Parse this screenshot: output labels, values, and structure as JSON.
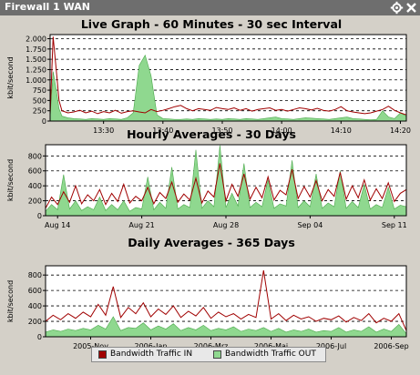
{
  "window": {
    "title": "Firewall 1 WAN",
    "icons": [
      "gear-icon",
      "close-icon"
    ],
    "titlebar_color": "#6e6e6e"
  },
  "colors": {
    "in": "#a00000",
    "out": "#8fd88f",
    "out_stroke": "#4aa84a",
    "plot_bg": "#ffffff"
  },
  "legend": {
    "in_label": "Bandwidth Traffic IN",
    "out_label": "Bandwidth Traffic OUT"
  },
  "chart_data": [
    {
      "type": "area",
      "title": "Live Graph - 60 Minutes - 30 sec Interval",
      "ylabel": "kbit/second",
      "yticks": [
        0,
        250,
        500,
        750,
        1000,
        1250,
        1500,
        1750,
        2000
      ],
      "ytick_labels": [
        "0",
        "250",
        "500",
        "750",
        "1.000",
        "1.250",
        "1.500",
        "1.750",
        "2.000"
      ],
      "ylim": [
        0,
        2100
      ],
      "xlim": [
        0,
        60
      ],
      "xticks": [
        9,
        19,
        29,
        39,
        49,
        59
      ],
      "xtick_labels": [
        "13:30",
        "13:40",
        "13:50",
        "14:00",
        "14:10",
        "14:20"
      ],
      "grid": "horizontal dashed",
      "series": [
        {
          "name": "Bandwidth Traffic IN",
          "x": [
            0,
            0.5,
            1,
            1.5,
            2,
            3,
            4,
            5,
            6,
            7,
            8,
            9,
            10,
            11,
            12,
            13,
            14,
            15,
            16,
            17,
            18,
            19,
            20,
            21,
            22,
            23,
            24,
            25,
            26,
            27,
            28,
            29,
            30,
            31,
            32,
            33,
            34,
            35,
            36,
            37,
            38,
            39,
            40,
            41,
            42,
            43,
            44,
            45,
            46,
            47,
            48,
            49,
            50,
            51,
            52,
            53,
            54,
            55,
            56,
            57,
            58,
            59,
            60
          ],
          "values": [
            150,
            2050,
            1300,
            500,
            250,
            200,
            220,
            260,
            200,
            240,
            180,
            230,
            200,
            260,
            190,
            230,
            250,
            220,
            200,
            280,
            230,
            260,
            300,
            350,
            380,
            300,
            250,
            300,
            280,
            260,
            330,
            300,
            280,
            320,
            260,
            300,
            240,
            280,
            300,
            320,
            260,
            280,
            240,
            280,
            320,
            300,
            270,
            310,
            260,
            240,
            280,
            350,
            250,
            220,
            200,
            180,
            200,
            240,
            280,
            360,
            260,
            200,
            150
          ]
        },
        {
          "name": "Bandwidth Traffic OUT",
          "x": [
            0,
            0.5,
            1,
            1.5,
            2,
            3,
            4,
            5,
            6,
            7,
            8,
            9,
            10,
            11,
            12,
            13,
            14,
            15,
            16,
            17,
            18,
            19,
            20,
            21,
            22,
            23,
            24,
            25,
            26,
            27,
            28,
            29,
            30,
            31,
            32,
            33,
            34,
            35,
            36,
            37,
            38,
            39,
            40,
            41,
            42,
            43,
            44,
            45,
            46,
            47,
            48,
            49,
            50,
            51,
            52,
            53,
            54,
            55,
            56,
            57,
            58,
            59,
            60
          ],
          "values": [
            100,
            1200,
            800,
            300,
            120,
            80,
            60,
            50,
            40,
            60,
            50,
            40,
            60,
            50,
            40,
            80,
            200,
            1350,
            1600,
            1100,
            150,
            60,
            50,
            40,
            40,
            50,
            40,
            60,
            50,
            40,
            50,
            40,
            60,
            50,
            40,
            60,
            50,
            40,
            60,
            80,
            100,
            60,
            50,
            40,
            60,
            80,
            70,
            60,
            50,
            40,
            60,
            80,
            100,
            60,
            50,
            40,
            30,
            40,
            250,
            100,
            60,
            200,
            120
          ]
        }
      ]
    },
    {
      "type": "area",
      "title": "Hourly Averages - 30 Days",
      "ylabel": "kbit/second",
      "yticks": [
        0,
        200,
        400,
        600,
        800
      ],
      "ytick_labels": [
        "0",
        "200",
        "400",
        "600",
        "800"
      ],
      "ylim": [
        0,
        950
      ],
      "xlim": [
        0,
        30
      ],
      "xticks": [
        1,
        8,
        15,
        22,
        29
      ],
      "xtick_labels": [
        "Aug 14",
        "Aug 21",
        "Aug 28",
        "Sep 04",
        "Sep 11"
      ],
      "grid": "horizontal dashed",
      "series": [
        {
          "name": "Bandwidth Traffic IN",
          "x": [
            0,
            0.5,
            1,
            1.5,
            2,
            2.5,
            3,
            3.5,
            4,
            4.5,
            5,
            5.5,
            6,
            6.5,
            7,
            7.5,
            8,
            8.5,
            9,
            9.5,
            10,
            10.5,
            11,
            11.5,
            12,
            12.5,
            13,
            13.5,
            14,
            14.5,
            15,
            15.5,
            16,
            16.5,
            17,
            17.5,
            18,
            18.5,
            19,
            19.5,
            20,
            20.5,
            21,
            21.5,
            22,
            22.5,
            23,
            23.5,
            24,
            24.5,
            25,
            25.5,
            26,
            26.5,
            27,
            27.5,
            28,
            28.5,
            29,
            29.5,
            30
          ],
          "values": [
            100,
            250,
            150,
            320,
            180,
            400,
            160,
            280,
            200,
            350,
            150,
            300,
            190,
            420,
            170,
            260,
            200,
            380,
            160,
            310,
            230,
            450,
            180,
            290,
            210,
            500,
            170,
            330,
            250,
            700,
            200,
            420,
            260,
            560,
            220,
            380,
            240,
            520,
            210,
            340,
            280,
            620,
            230,
            390,
            250,
            470,
            200,
            350,
            260,
            580,
            220,
            400,
            240,
            480,
            210,
            360,
            230,
            440,
            190,
            300,
            350
          ]
        },
        {
          "name": "Bandwidth Traffic OUT",
          "x": [
            0,
            0.5,
            1,
            1.5,
            2,
            2.5,
            3,
            3.5,
            4,
            4.5,
            5,
            5.5,
            6,
            6.5,
            7,
            7.5,
            8,
            8.5,
            9,
            9.5,
            10,
            10.5,
            11,
            11.5,
            12,
            12.5,
            13,
            13.5,
            14,
            14.5,
            15,
            15.5,
            16,
            16.5,
            17,
            17.5,
            18,
            18.5,
            19,
            19.5,
            20,
            20.5,
            21,
            21.5,
            22,
            22.5,
            23,
            23.5,
            24,
            24.5,
            25,
            25.5,
            26,
            26.5,
            27,
            27.5,
            28,
            28.5,
            29,
            29.5,
            30
          ],
          "values": [
            60,
            150,
            80,
            550,
            90,
            200,
            70,
            120,
            80,
            250,
            70,
            150,
            80,
            200,
            60,
            110,
            90,
            520,
            80,
            180,
            100,
            650,
            90,
            150,
            110,
            880,
            100,
            200,
            120,
            940,
            110,
            300,
            130,
            700,
            110,
            180,
            120,
            480,
            100,
            160,
            130,
            740,
            110,
            200,
            120,
            560,
            100,
            170,
            120,
            600,
            100,
            190,
            110,
            420,
            90,
            150,
            110,
            380,
            90,
            140,
            120
          ]
        }
      ]
    },
    {
      "type": "area",
      "title": "Daily Averages - 365 Days",
      "ylabel": "kbit/second",
      "yticks": [
        0,
        200,
        400,
        600,
        800
      ],
      "ytick_labels": [
        "0",
        "200",
        "400",
        "600",
        "800"
      ],
      "ylim": [
        0,
        920
      ],
      "xlim": [
        0,
        12
      ],
      "xticks": [
        1.5,
        3.5,
        5.5,
        7.5,
        9.5,
        11.5
      ],
      "xtick_labels": [
        "2005-Nov",
        "2006-Jan",
        "2006-Mrz",
        "2006-Mai",
        "2006-Jul",
        "2006-Sep"
      ],
      "grid": "horizontal dashed",
      "series": [
        {
          "name": "Bandwidth Traffic IN",
          "x": [
            0,
            0.25,
            0.5,
            0.75,
            1,
            1.25,
            1.5,
            1.75,
            2,
            2.25,
            2.5,
            2.75,
            3,
            3.25,
            3.5,
            3.75,
            4,
            4.25,
            4.5,
            4.75,
            5,
            5.25,
            5.5,
            5.75,
            6,
            6.25,
            6.5,
            6.75,
            7,
            7.25,
            7.5,
            7.75,
            8,
            8.25,
            8.5,
            8.75,
            9,
            9.25,
            9.5,
            9.75,
            10,
            10.25,
            10.5,
            10.75,
            11,
            11.25,
            11.5,
            11.75,
            12
          ],
          "values": [
            200,
            280,
            220,
            300,
            240,
            320,
            260,
            420,
            280,
            650,
            250,
            380,
            300,
            440,
            260,
            360,
            290,
            400,
            250,
            330,
            270,
            380,
            240,
            320,
            260,
            300,
            230,
            290,
            250,
            860,
            230,
            300,
            210,
            280,
            230,
            260,
            200,
            240,
            220,
            270,
            190,
            250,
            210,
            300,
            180,
            240,
            200,
            300,
            80
          ]
        },
        {
          "name": "Bandwidth Traffic OUT",
          "x": [
            0,
            0.25,
            0.5,
            0.75,
            1,
            1.25,
            1.5,
            1.75,
            2,
            2.25,
            2.5,
            2.75,
            3,
            3.25,
            3.5,
            3.75,
            4,
            4.25,
            4.5,
            4.75,
            5,
            5.25,
            5.5,
            5.75,
            6,
            6.25,
            6.5,
            6.75,
            7,
            7.25,
            7.5,
            7.75,
            8,
            8.25,
            8.5,
            8.75,
            9,
            9.25,
            9.5,
            9.75,
            10,
            10.25,
            10.5,
            10.75,
            11,
            11.25,
            11.5,
            11.75,
            12
          ],
          "values": [
            60,
            90,
            70,
            100,
            80,
            110,
            90,
            150,
            100,
            260,
            80,
            120,
            110,
            180,
            90,
            140,
            100,
            170,
            80,
            120,
            90,
            150,
            80,
            110,
            90,
            130,
            70,
            100,
            80,
            120,
            70,
            110,
            60,
            90,
            70,
            100,
            60,
            80,
            70,
            120,
            60,
            90,
            70,
            130,
            60,
            100,
            70,
            160,
            40
          ]
        }
      ]
    }
  ]
}
